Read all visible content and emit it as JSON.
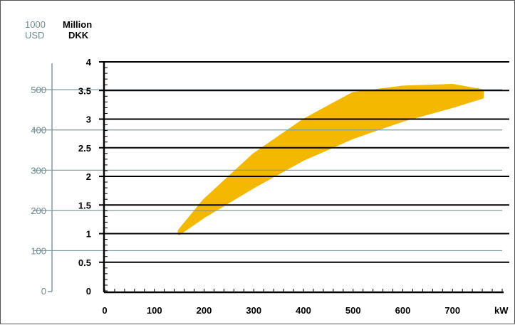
{
  "chart_data": {
    "type": "area",
    "headers": {
      "usd_line1": "1000",
      "usd_line2": "USD",
      "dkk_line1": "Million",
      "dkk_line2": "DKK"
    },
    "xlabel": "kW",
    "x_ticks": [
      0,
      100,
      200,
      300,
      400,
      500,
      600,
      700
    ],
    "x_ticks_text": [
      "0",
      "100",
      "200",
      "300",
      "400",
      "500",
      "600",
      "700"
    ],
    "xlim": [
      0,
      800
    ],
    "y_dkk_ticks": [
      0,
      0.5,
      1,
      1.5,
      2,
      2.5,
      3,
      3.5,
      4
    ],
    "y_dkk_ticks_text": [
      "0",
      "0.5",
      "1",
      "1.5",
      "2",
      "2.5",
      "3",
      "3.5",
      "4"
    ],
    "y_dkk_lim": [
      0,
      4
    ],
    "y_usd_ticks": [
      0,
      100,
      200,
      300,
      400,
      500
    ],
    "y_usd_ticks_text": [
      "0",
      "100",
      "200",
      "300",
      "400",
      "500"
    ],
    "usd_per_million_dkk": 142.3,
    "band_color": "#f5b800",
    "dkk_grid_color": "#000000",
    "usd_grid_color": "#7d9aa0",
    "band": {
      "x": [
        150,
        200,
        300,
        400,
        500,
        600,
        700,
        760
      ],
      "upper_dkk": [
        1.05,
        1.58,
        2.38,
        2.98,
        3.45,
        3.56,
        3.59,
        3.5
      ],
      "lower_dkk": [
        1.0,
        1.3,
        1.82,
        2.3,
        2.68,
        2.98,
        3.22,
        3.38
      ]
    }
  }
}
